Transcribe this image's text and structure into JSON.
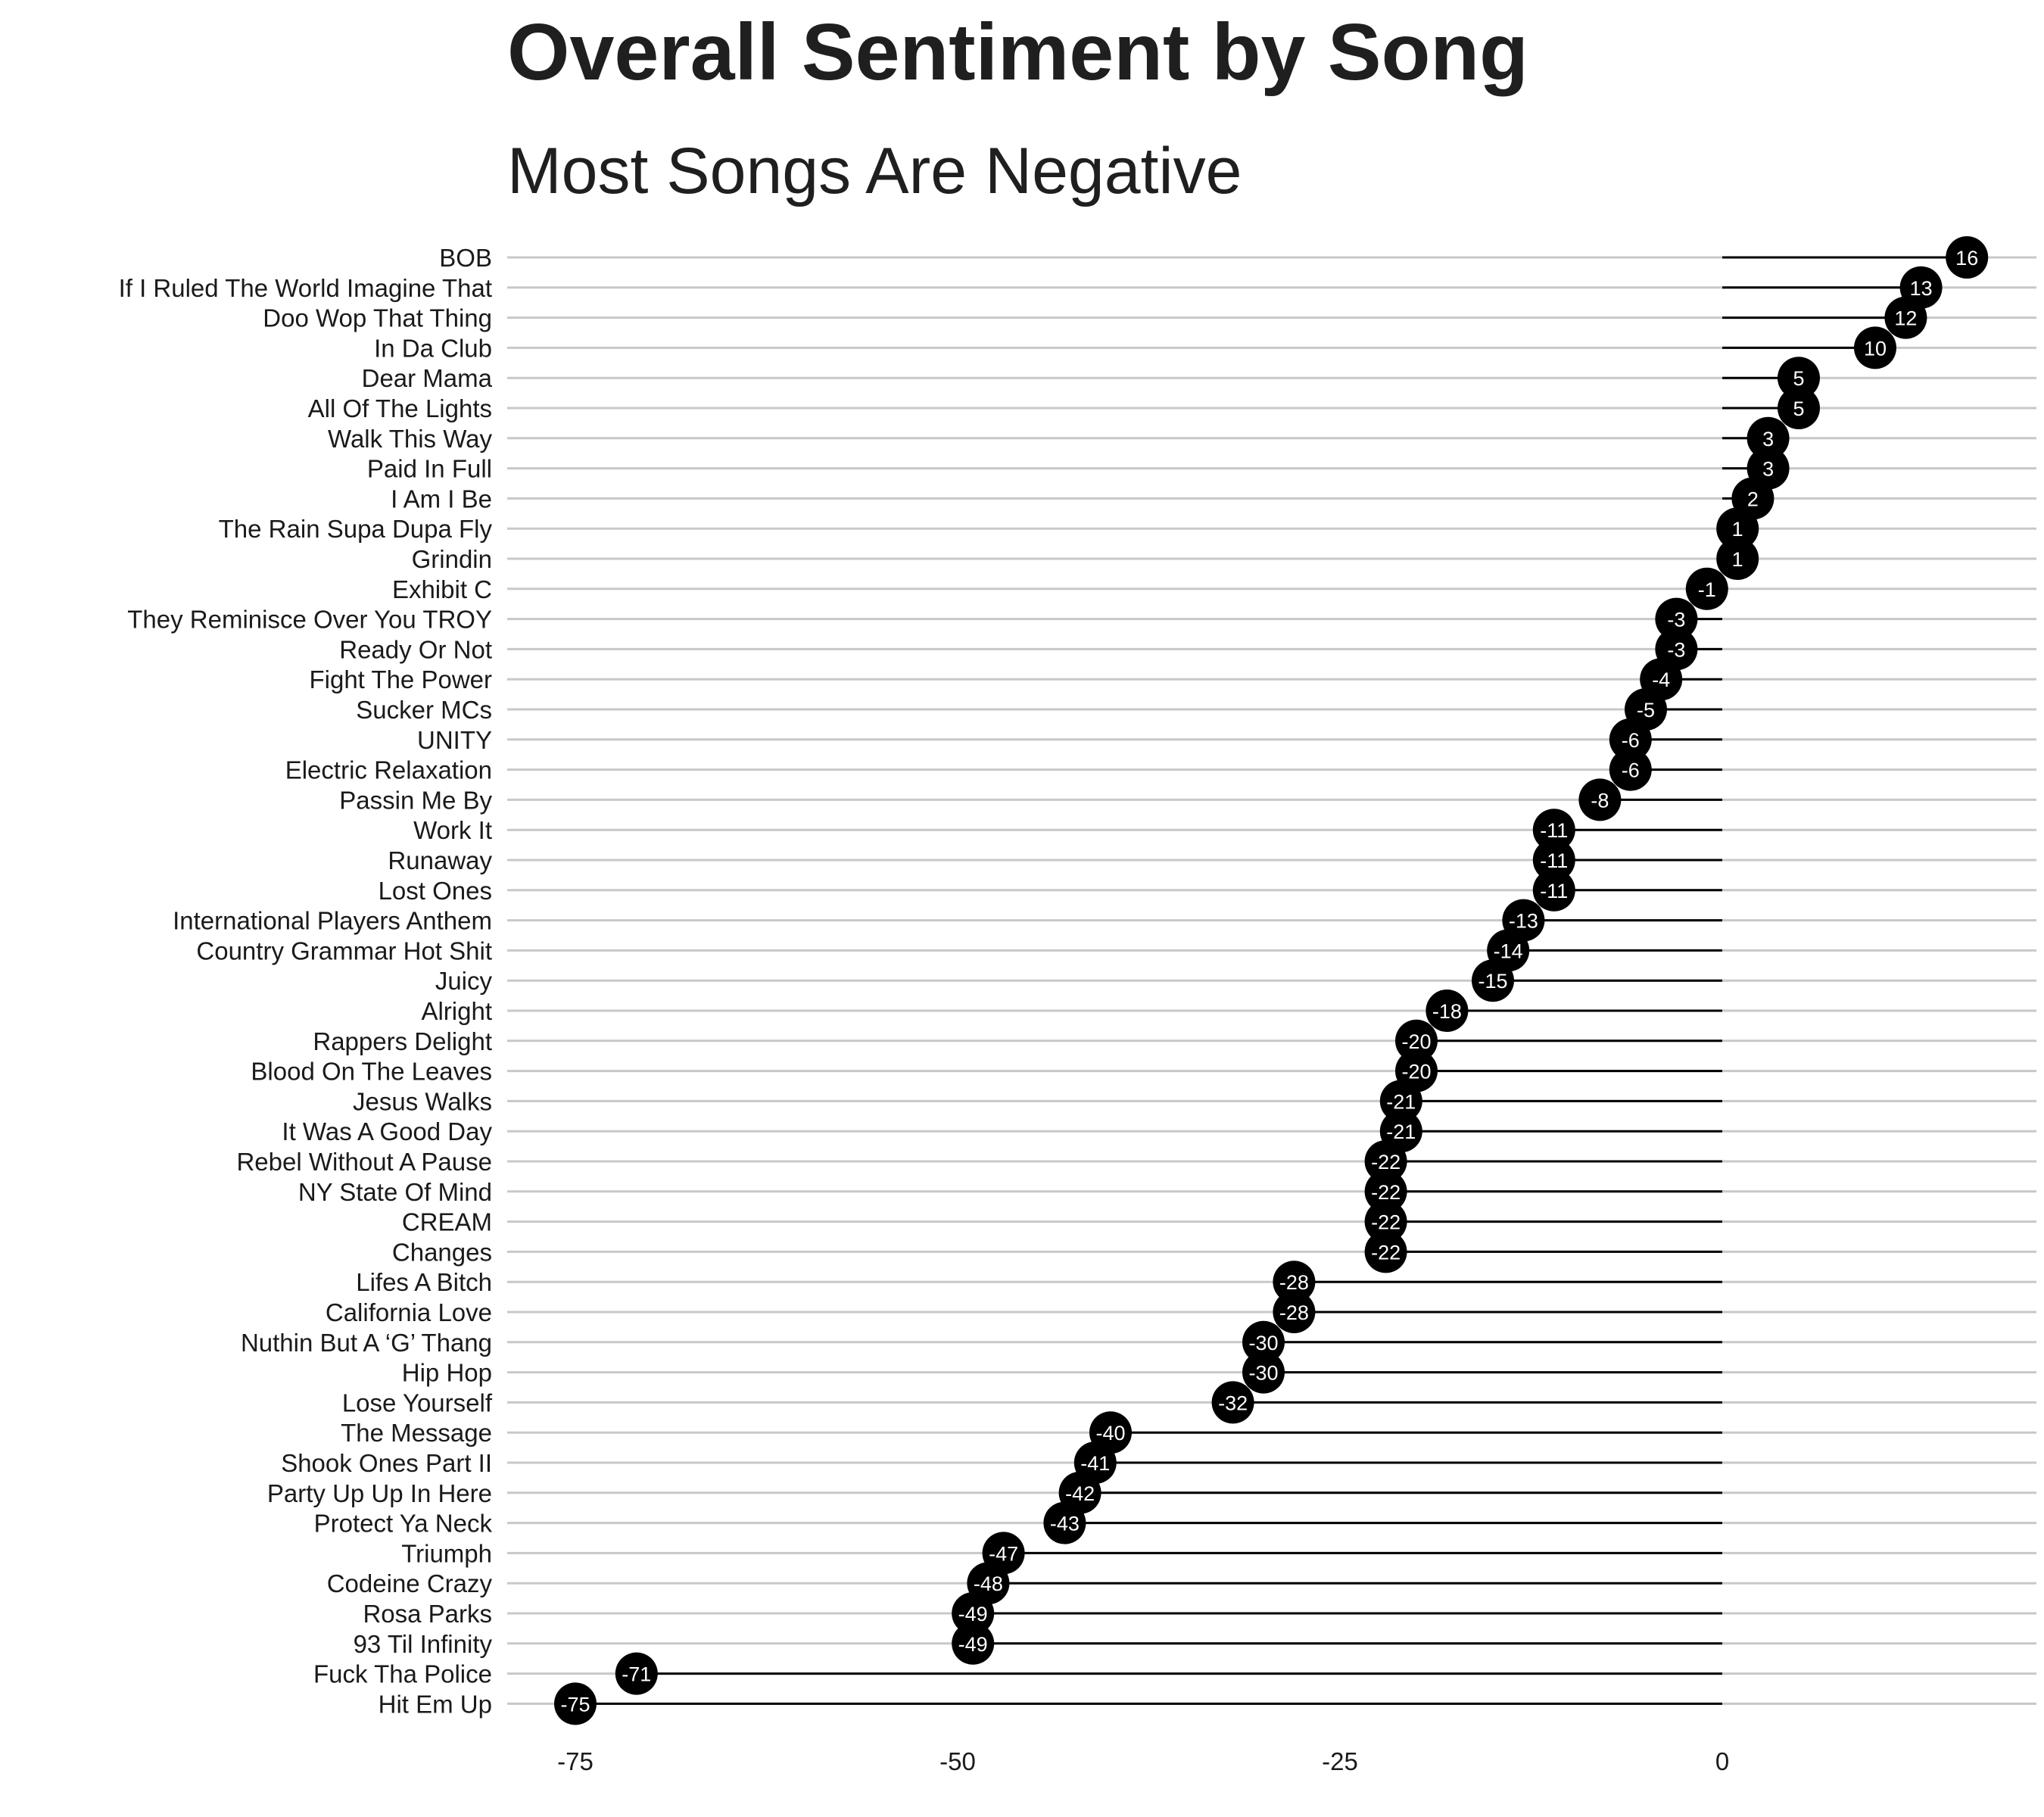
{
  "chart_data": {
    "type": "lollipop",
    "title": "Overall Sentiment by Song",
    "subtitle": "Most Songs Are Negative",
    "xlabel": "",
    "ylabel": "",
    "xlim": [
      -78,
      20
    ],
    "xticks": [
      -75,
      -50,
      -25,
      0
    ],
    "grid": true,
    "legend": "none",
    "colors": {
      "point": "#000000",
      "label": "#ffffff",
      "grid": "#c8c8c8",
      "text": "#1a1a1a"
    },
    "categories": [
      "BOB",
      "If I Ruled The World Imagine That",
      "Doo Wop That Thing",
      "In Da Club",
      "Dear Mama",
      "All Of The Lights",
      "Walk This Way",
      "Paid In Full",
      "I Am I Be",
      "The Rain Supa Dupa Fly",
      "Grindin",
      "Exhibit C",
      "They Reminisce Over You TROY",
      "Ready Or Not",
      "Fight The Power",
      "Sucker MCs",
      "UNITY",
      "Electric Relaxation",
      "Passin Me By",
      "Work It",
      "Runaway",
      "Lost Ones",
      "International Players Anthem",
      "Country Grammar Hot Shit",
      "Juicy",
      "Alright",
      "Rappers Delight",
      "Blood On The Leaves",
      "Jesus Walks",
      "It Was A Good Day",
      "Rebel Without A Pause",
      "NY State Of Mind",
      "CREAM",
      "Changes",
      "Lifes A Bitch",
      "California Love",
      "Nuthin But A ‘G’ Thang",
      "Hip Hop",
      "Lose Yourself",
      "The Message",
      "Shook Ones Part II",
      "Party Up Up In Here",
      "Protect Ya Neck",
      "Triumph",
      "Codeine Crazy",
      "Rosa Parks",
      "93 Til Infinity",
      "Fuck Tha Police",
      "Hit Em Up"
    ],
    "values": [
      16,
      13,
      12,
      10,
      5,
      5,
      3,
      3,
      2,
      1,
      1,
      -1,
      -3,
      -3,
      -4,
      -5,
      -6,
      -6,
      -8,
      -11,
      -11,
      -11,
      -13,
      -14,
      -15,
      -18,
      -20,
      -20,
      -21,
      -21,
      -22,
      -22,
      -22,
      -22,
      -28,
      -28,
      -30,
      -30,
      -32,
      -40,
      -41,
      -42,
      -43,
      -47,
      -48,
      -49,
      -49,
      -71,
      -75
    ]
  }
}
